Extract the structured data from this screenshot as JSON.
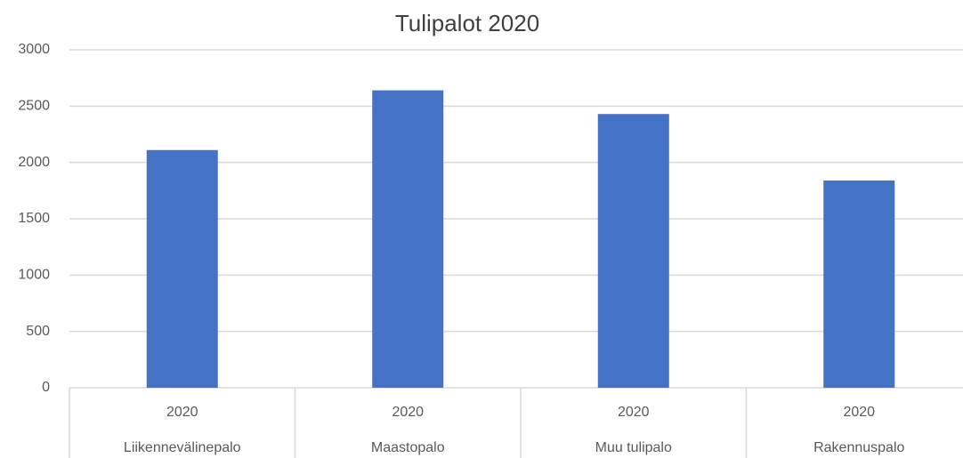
{
  "chart_data": {
    "type": "bar",
    "title": "Tulipalot 2020",
    "categories": [
      "Liikennevälinepalo",
      "Maastopalo",
      "Muu tulipalo",
      "Rakennuspalo"
    ],
    "subcategories": [
      "2020",
      "2020",
      "2020",
      "2020"
    ],
    "values": [
      2110,
      2640,
      2430,
      1840
    ],
    "color": "#4472c4",
    "ylim": [
      0,
      3000
    ],
    "yticks": [
      0,
      500,
      1000,
      1500,
      2000,
      2500,
      3000
    ],
    "grid": true
  }
}
